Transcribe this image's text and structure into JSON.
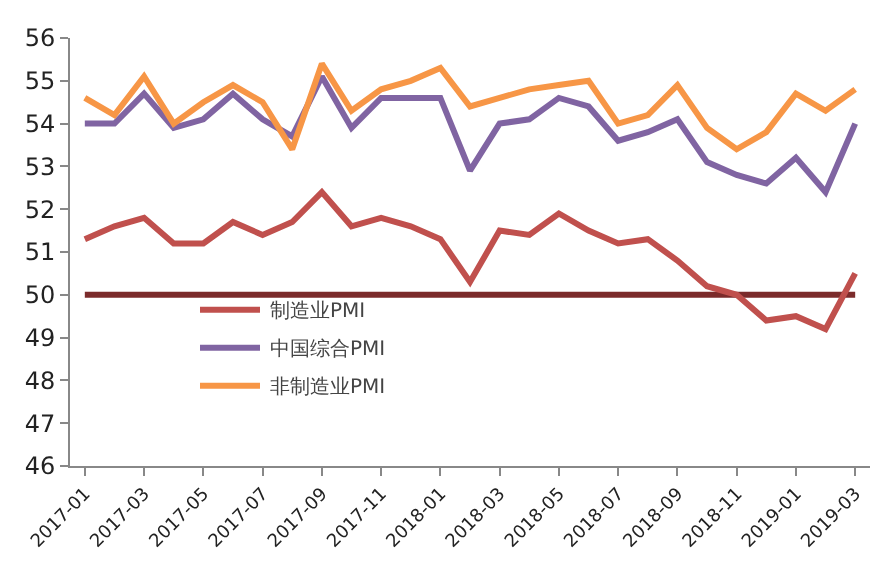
{
  "chart_data": {
    "type": "line",
    "categories": [
      "2017-01",
      null,
      "2017-03",
      null,
      "2017-05",
      null,
      "2017-07",
      null,
      "2017-09",
      null,
      "2017-11",
      null,
      "2018-01",
      null,
      "2018-03",
      null,
      "2018-05",
      null,
      "2018-07",
      null,
      "2018-09",
      null,
      "2018-11",
      null,
      "2019-01",
      null,
      "2019-03"
    ],
    "series": [
      {
        "name": "制造业PMI",
        "color": "#c0504d",
        "values": [
          51.3,
          51.6,
          51.8,
          51.2,
          51.2,
          51.7,
          51.4,
          51.7,
          52.4,
          51.6,
          51.8,
          51.6,
          51.3,
          50.3,
          51.5,
          51.4,
          51.9,
          51.5,
          51.2,
          51.3,
          50.8,
          50.2,
          50.0,
          49.4,
          49.5,
          49.2,
          50.5
        ]
      },
      {
        "name": "中国综合PMI",
        "color": "#8064a2",
        "values": [
          54.0,
          54.0,
          54.7,
          53.9,
          54.1,
          54.7,
          54.1,
          53.7,
          55.1,
          53.9,
          54.6,
          54.6,
          54.6,
          52.9,
          54.0,
          54.1,
          54.6,
          54.4,
          53.6,
          53.8,
          54.1,
          53.1,
          52.8,
          52.6,
          53.2,
          52.4,
          54.0
        ]
      },
      {
        "name": "非制造业PMI",
        "color": "#f79646",
        "values": [
          54.6,
          54.2,
          55.1,
          54.0,
          54.5,
          54.9,
          54.5,
          53.4,
          55.4,
          54.3,
          54.8,
          55.0,
          55.3,
          54.4,
          54.6,
          54.8,
          54.9,
          55.0,
          54.0,
          54.2,
          54.9,
          53.9,
          53.4,
          53.8,
          54.7,
          54.3,
          54.8
        ]
      }
    ],
    "ref_lines": [
      {
        "axis": "y",
        "value": 50,
        "color": "#7b2b2b"
      }
    ],
    "ylim": [
      46,
      56
    ],
    "yticks": [
      46,
      47,
      48,
      49,
      50,
      51,
      52,
      53,
      54,
      55,
      56
    ],
    "legend": "bottom left",
    "marker": "none",
    "line_style": "solid"
  }
}
